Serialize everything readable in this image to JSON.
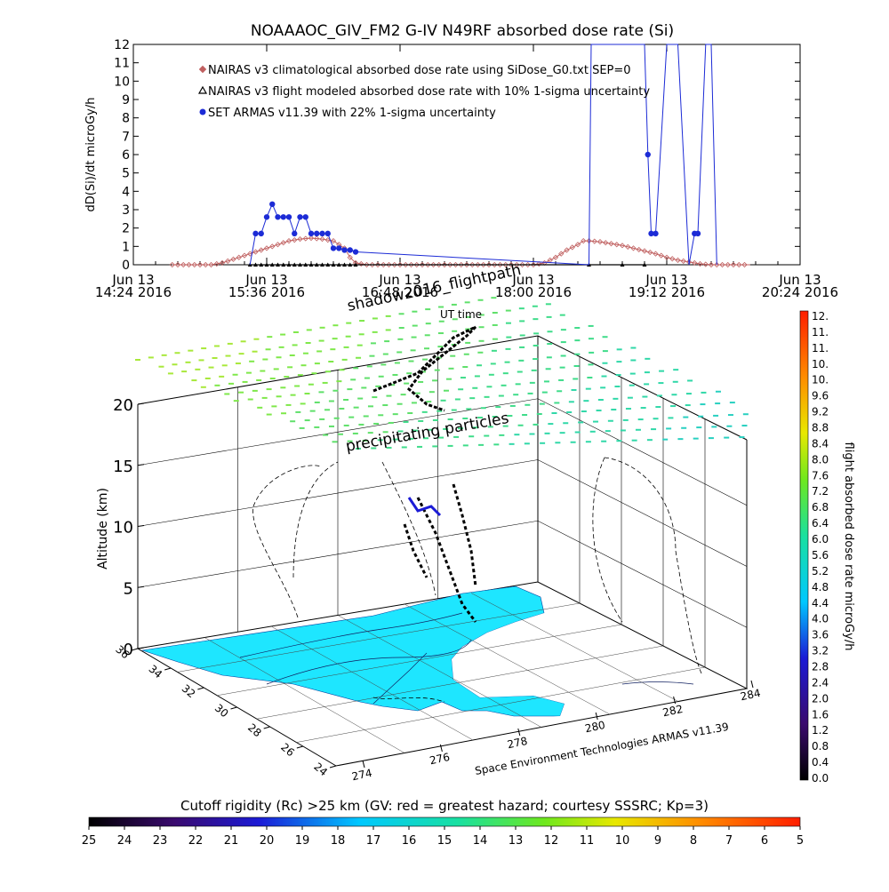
{
  "chart_data": [
    {
      "type": "line",
      "title": "NOAAAOC_GIV_FM2 G-IV    N49RF  absorbed dose rate (Si)",
      "ylabel": "dD(Si)/dt microGy/h",
      "ylim": [
        0,
        12
      ],
      "yticks": [
        "0",
        "1",
        "2",
        "3",
        "4",
        "5",
        "6",
        "7",
        "8",
        "9",
        "10",
        "11",
        "12"
      ],
      "xlim_hours": [
        14.4,
        20.4
      ],
      "xticks": [
        {
          "line1": "Jun 13",
          "line2": "14:24 2016",
          "h": 14.4
        },
        {
          "line1": "Jun 13",
          "line2": "15:36 2016",
          "h": 15.6
        },
        {
          "line1": "Jun 13",
          "line2": "16:48 2016",
          "h": 16.8
        },
        {
          "line1": "Jun 13",
          "line2": "18:00 2016",
          "h": 18.0
        },
        {
          "line1": "Jun 13",
          "line2": "19:12 2016",
          "h": 19.2
        },
        {
          "line1": "Jun 13",
          "line2": "20:24 2016",
          "h": 20.4
        }
      ],
      "legend": [
        {
          "marker": "diamond",
          "color": "#c06060",
          "label": "NAIRAS v3 climatological absorbed dose rate using SiDose_G0.txt SEP=0"
        },
        {
          "marker": "triangle",
          "color": "#000000",
          "label": "NAIRAS v3 flight modeled absorbed dose rate with 10% 1-sigma uncertainty"
        },
        {
          "marker": "dot",
          "color": "#1c2bd6",
          "label": "SET ARMAS v11.39 with 22% 1-sigma uncertainty"
        }
      ],
      "series": [
        {
          "name": "NAIRAS v3 climatological absorbed dose rate using SiDose_G0.txt SEP=0",
          "color": "#c06060",
          "x": [
            14.75,
            14.95,
            15.1,
            15.2,
            15.3,
            15.4,
            15.5,
            15.6,
            15.7,
            15.8,
            15.9,
            16.0,
            16.1,
            16.2,
            16.3,
            16.35,
            16.4,
            16.5,
            16.6,
            16.8,
            17.0,
            17.2,
            17.4,
            17.6,
            17.8,
            18.0,
            18.1,
            18.2,
            18.3,
            18.4,
            18.45,
            18.5,
            18.6,
            18.7,
            18.8,
            18.9,
            19.0,
            19.1,
            19.2,
            19.3,
            19.4,
            19.5,
            19.6,
            19.7,
            19.8,
            19.95
          ],
          "y": [
            0,
            0,
            0,
            0.1,
            0.3,
            0.5,
            0.7,
            0.9,
            1.1,
            1.3,
            1.4,
            1.45,
            1.4,
            1.3,
            0.9,
            0.4,
            0.1,
            0,
            0,
            0,
            0,
            0,
            0,
            0,
            0,
            0,
            0.1,
            0.4,
            0.8,
            1.1,
            1.3,
            1.3,
            1.25,
            1.15,
            1.05,
            0.9,
            0.75,
            0.6,
            0.4,
            0.25,
            0.15,
            0.05,
            0,
            0,
            0,
            0
          ]
        },
        {
          "name": "NAIRAS v3 flight modeled absorbed dose rate with 10% 1-sigma uncertainty",
          "color": "#000000",
          "x": [
            15.45,
            15.5,
            15.55,
            15.6,
            15.65,
            15.7,
            15.75,
            15.8,
            15.85,
            15.9,
            15.95,
            16.0,
            16.05,
            16.1,
            16.15,
            16.2,
            16.25,
            16.3,
            16.35,
            16.4,
            18.5,
            18.8,
            19.0
          ],
          "y": [
            0,
            0,
            0,
            0,
            0,
            0,
            0,
            0,
            0,
            0,
            0,
            0,
            0,
            0,
            0,
            0,
            0,
            0,
            0,
            0,
            0,
            0,
            0
          ]
        },
        {
          "name": "SET ARMAS v11.39 with 22% 1-sigma uncertainty",
          "color": "#1c2bd6",
          "x": [
            15.45,
            15.5,
            15.55,
            15.6,
            15.65,
            15.7,
            15.75,
            15.8,
            15.85,
            15.9,
            15.95,
            16.0,
            16.05,
            16.1,
            16.15,
            16.2,
            16.25,
            16.3,
            16.35,
            16.4,
            18.5,
            18.52,
            18.6,
            18.8,
            19.0,
            19.03,
            19.06,
            19.1,
            19.2,
            19.3,
            19.4,
            19.45,
            19.48,
            19.55,
            19.6,
            19.65
          ],
          "y": [
            0,
            1.7,
            1.7,
            2.6,
            3.3,
            2.6,
            2.6,
            2.6,
            1.7,
            2.6,
            2.6,
            1.7,
            1.7,
            1.7,
            1.7,
            0.9,
            0.9,
            0.8,
            0.8,
            0.7,
            0,
            12,
            12,
            12,
            12,
            6,
            1.7,
            1.7,
            12,
            12,
            0,
            1.7,
            1.7,
            12,
            12,
            0
          ]
        }
      ]
    },
    {
      "type": "scatter3d",
      "zlabel": "Altitude (km)",
      "zticks": [
        "0",
        "5",
        "10",
        "15",
        "20"
      ],
      "lat_ticks": [
        "36",
        "34",
        "32",
        "30",
        "28",
        "26",
        "24"
      ],
      "lon_ticks": [
        "274",
        "276",
        "278",
        "280",
        "282",
        "284"
      ],
      "annotations": [
        "shadow2016_flightpath",
        "UT time",
        "precipitating particles"
      ],
      "credit": "Space Environment Technologies ARMAS v11.39",
      "colorbar": {
        "label": "flight absorbed dose rate microGy/h",
        "ticks": [
          "12.",
          "11.",
          "11.",
          "10.",
          "10.",
          "9.6",
          "9.2",
          "8.8",
          "8.4",
          "8.0",
          "7.6",
          "7.2",
          "6.8",
          "6.4",
          "6.0",
          "5.6",
          "5.2",
          "4.8",
          "4.4",
          "4.0",
          "3.6",
          "3.2",
          "2.8",
          "2.4",
          "2.0",
          "1.6",
          "1.2",
          "0.8",
          "0.4",
          "0.0"
        ]
      },
      "bottom_colorbar": {
        "title": "Cutoff rigidity (Rc) >25 km (GV: red = greatest hazard; courtesy SSSRC; Kp=3)",
        "ticks": [
          "25",
          "24",
          "23",
          "22",
          "21",
          "20",
          "19",
          "18",
          "17",
          "16",
          "15",
          "14",
          "13",
          "12",
          "11",
          "10",
          "9",
          "8",
          "7",
          "6",
          "5"
        ]
      }
    }
  ]
}
